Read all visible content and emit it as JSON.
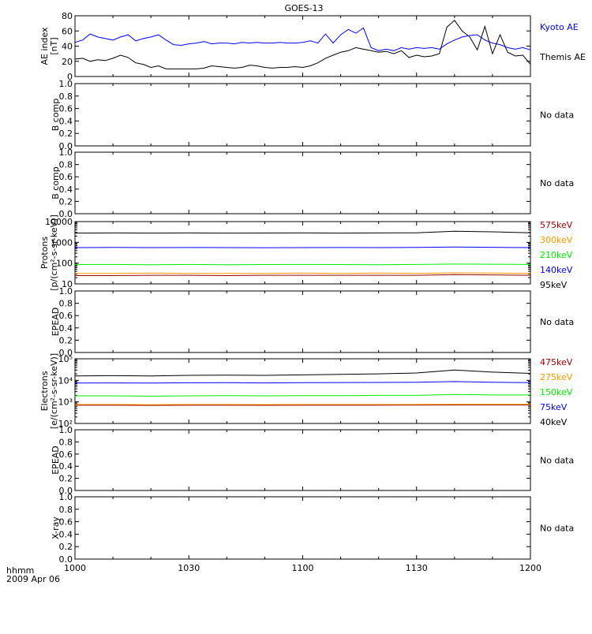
{
  "title": "GOES-13",
  "footer": {
    "time_label": "hhmm",
    "date_label": "2009 Apr 06"
  },
  "x_axis": {
    "range": [
      0,
      120
    ],
    "ticks": [
      0,
      30,
      60,
      90,
      120
    ],
    "tick_labels": [
      "1000",
      "1030",
      "1100",
      "1130",
      "1200"
    ]
  },
  "chart_data": [
    {
      "type": "line",
      "ylabel": "AE index\n[nT]",
      "yscale": "linear",
      "ylim": [
        0,
        80
      ],
      "yticks": [
        0,
        20,
        40,
        60,
        80
      ],
      "ytick_labels": [
        "0",
        "20",
        "40",
        "60",
        "80"
      ],
      "series": [
        {
          "name": "Kyoto AE",
          "color": "#0000ff",
          "x": [
            0,
            2,
            4,
            6,
            8,
            10,
            12,
            14,
            16,
            18,
            20,
            22,
            24,
            26,
            28,
            30,
            32,
            34,
            36,
            38,
            40,
            42,
            44,
            46,
            48,
            50,
            52,
            54,
            56,
            58,
            60,
            62,
            64,
            66,
            68,
            70,
            72,
            74,
            76,
            78,
            80,
            82,
            84,
            86,
            88,
            90,
            92,
            94,
            96,
            98,
            100,
            102,
            104,
            106,
            108,
            110,
            112,
            114,
            116,
            118,
            120
          ],
          "y": [
            45,
            48,
            56,
            52,
            50,
            48,
            52,
            55,
            47,
            50,
            52,
            55,
            48,
            42,
            41,
            43,
            44,
            46,
            43,
            44,
            44,
            43,
            45,
            44,
            45,
            44,
            44,
            45,
            44,
            44,
            45,
            47,
            44,
            56,
            44,
            55,
            62,
            57,
            64,
            38,
            34,
            36,
            34,
            38,
            36,
            38,
            37,
            38,
            36,
            43,
            48,
            52,
            54,
            55,
            48,
            44,
            42,
            38,
            36,
            38,
            35
          ]
        },
        {
          "name": "Themis AE",
          "color": "#000000",
          "x": [
            0,
            2,
            4,
            6,
            8,
            10,
            12,
            14,
            16,
            18,
            20,
            22,
            24,
            26,
            28,
            30,
            32,
            34,
            36,
            38,
            40,
            42,
            44,
            46,
            48,
            50,
            52,
            54,
            56,
            58,
            60,
            62,
            64,
            66,
            68,
            70,
            72,
            74,
            76,
            78,
            80,
            82,
            84,
            86,
            88,
            90,
            92,
            94,
            96,
            98,
            100,
            102,
            104,
            106,
            108,
            110,
            112,
            114,
            116,
            118,
            120
          ],
          "y": [
            23,
            24,
            20,
            22,
            21,
            24,
            28,
            25,
            18,
            16,
            12,
            14,
            10,
            10,
            10,
            10,
            10,
            11,
            14,
            13,
            12,
            11,
            12,
            15,
            14,
            12,
            11,
            12,
            12,
            13,
            12,
            14,
            18,
            24,
            28,
            32,
            34,
            38,
            36,
            34,
            32,
            33,
            30,
            34,
            25,
            28,
            26,
            27,
            30,
            65,
            74,
            60,
            52,
            35,
            66,
            30,
            55,
            32,
            27,
            28,
            16
          ]
        }
      ],
      "legend": "right"
    },
    {
      "type": "line",
      "ylabel": "B comp",
      "yscale": "linear",
      "ylim": [
        0,
        1
      ],
      "yticks": [
        0,
        0.2,
        0.4,
        0.6,
        0.8,
        1.0
      ],
      "ytick_labels": [
        "0.0",
        "0.2",
        "0.4",
        "0.6",
        "0.8",
        "1.0"
      ],
      "series": [],
      "note": "No data"
    },
    {
      "type": "line",
      "ylabel": "B comp",
      "yscale": "linear",
      "ylim": [
        0,
        1
      ],
      "yticks": [
        0,
        0.2,
        0.4,
        0.6,
        0.8,
        1.0
      ],
      "ytick_labels": [
        "0.0",
        "0.2",
        "0.4",
        "0.6",
        "0.8",
        "1.0"
      ],
      "series": [],
      "note": "No data"
    },
    {
      "type": "line",
      "ylabel": "Protons\n[p/(cm²-s-sr-keV)]",
      "yscale": "log",
      "ylim": [
        10,
        10000
      ],
      "yticks": [
        10,
        100,
        1000,
        10000
      ],
      "ytick_labels": [
        "10",
        "100",
        "1000",
        "10000"
      ],
      "series": [
        {
          "name": "575keV",
          "color": "#990000",
          "x": [
            0,
            10,
            20,
            30,
            40,
            50,
            60,
            70,
            80,
            90,
            100,
            110,
            120
          ],
          "y": [
            25,
            25,
            26,
            26,
            25,
            26,
            26,
            26,
            26,
            26,
            28,
            27,
            26
          ]
        },
        {
          "name": "300keV",
          "color": "#ff9900",
          "x": [
            0,
            10,
            20,
            30,
            40,
            50,
            60,
            70,
            80,
            90,
            100,
            110,
            120
          ],
          "y": [
            32,
            32,
            33,
            32,
            32,
            32,
            33,
            32,
            33,
            32,
            34,
            33,
            32
          ]
        },
        {
          "name": "210keV",
          "color": "#00ee00",
          "x": [
            0,
            10,
            20,
            30,
            40,
            50,
            60,
            70,
            80,
            90,
            100,
            110,
            120
          ],
          "y": [
            85,
            86,
            84,
            86,
            84,
            85,
            86,
            85,
            84,
            86,
            90,
            88,
            86
          ]
        },
        {
          "name": "140keV",
          "color": "#0000ff",
          "x": [
            0,
            10,
            20,
            30,
            40,
            50,
            60,
            70,
            80,
            90,
            100,
            110,
            120
          ],
          "y": [
            560,
            570,
            560,
            565,
            560,
            555,
            560,
            565,
            560,
            570,
            600,
            580,
            560
          ]
        },
        {
          "name": "95keV",
          "color": "#000000",
          "x": [
            0,
            10,
            20,
            30,
            40,
            50,
            60,
            70,
            80,
            90,
            100,
            110,
            120
          ],
          "y": [
            2800,
            2850,
            2800,
            2850,
            2800,
            2820,
            2850,
            2800,
            2850,
            2900,
            3400,
            3200,
            2900
          ]
        }
      ],
      "legend": "right"
    },
    {
      "type": "line",
      "ylabel": "EPEAD",
      "yscale": "linear",
      "ylim": [
        0,
        1
      ],
      "yticks": [
        0,
        0.2,
        0.4,
        0.6,
        0.8,
        1.0
      ],
      "ytick_labels": [
        "0.0",
        "0.2",
        "0.4",
        "0.6",
        "0.8",
        "1.0"
      ],
      "series": [],
      "note": "No data"
    },
    {
      "type": "line",
      "ylabel": "Electrons\n[e/(cm²-s-sr-keV)]",
      "yscale": "log",
      "ylim": [
        100,
        100000
      ],
      "yticks": [
        100,
        1000,
        10000,
        100000
      ],
      "ytick_labels": [
        "10²",
        "10³",
        "10⁴",
        "10⁵"
      ],
      "series": [
        {
          "name": "475keV",
          "color": "#990000",
          "x": [
            0,
            10,
            20,
            30,
            40,
            50,
            60,
            70,
            80,
            90,
            100,
            110,
            120
          ],
          "y": [
            700,
            700,
            690,
            700,
            700,
            695,
            700,
            700,
            700,
            710,
            720,
            720,
            720
          ]
        },
        {
          "name": "275keV",
          "color": "#ff9900",
          "x": [
            0,
            10,
            20,
            30,
            40,
            50,
            60,
            70,
            80,
            90,
            100,
            110,
            120
          ],
          "y": [
            760,
            760,
            750,
            760,
            760,
            755,
            760,
            760,
            760,
            770,
            780,
            780,
            780
          ]
        },
        {
          "name": "150keV",
          "color": "#00ee00",
          "x": [
            0,
            10,
            20,
            30,
            40,
            50,
            60,
            70,
            80,
            90,
            100,
            110,
            120
          ],
          "y": [
            1900,
            1900,
            1850,
            1900,
            1950,
            1900,
            1950,
            1950,
            2000,
            2000,
            2200,
            2100,
            2100
          ]
        },
        {
          "name": "75keV",
          "color": "#0000ff",
          "x": [
            0,
            10,
            20,
            30,
            40,
            50,
            60,
            70,
            80,
            90,
            100,
            110,
            120
          ],
          "y": [
            7500,
            7600,
            7500,
            7700,
            7800,
            7600,
            7800,
            7900,
            8000,
            8200,
            8800,
            8200,
            7800
          ]
        },
        {
          "name": "40keV",
          "color": "#000000",
          "x": [
            0,
            10,
            20,
            30,
            40,
            50,
            60,
            70,
            80,
            90,
            100,
            110,
            120
          ],
          "y": [
            16000,
            16500,
            16000,
            17000,
            17500,
            17000,
            18000,
            19000,
            20000,
            22000,
            30000,
            24000,
            21000
          ]
        }
      ],
      "legend": "right"
    },
    {
      "type": "line",
      "ylabel": "EPEAD",
      "yscale": "linear",
      "ylim": [
        0,
        1
      ],
      "yticks": [
        0,
        0.2,
        0.4,
        0.6,
        0.8,
        1.0
      ],
      "ytick_labels": [
        "0.0",
        "0.2",
        "0.4",
        "0.6",
        "0.8",
        "1.0"
      ],
      "series": [],
      "note": "No data"
    },
    {
      "type": "line",
      "ylabel": "X-ray",
      "yscale": "linear",
      "ylim": [
        0,
        1
      ],
      "yticks": [
        0,
        0.2,
        0.4,
        0.6,
        0.8,
        1.0
      ],
      "ytick_labels": [
        "0.0",
        "0.2",
        "0.4",
        "0.6",
        "0.8",
        "1.0"
      ],
      "series": [],
      "note": "No data"
    }
  ]
}
